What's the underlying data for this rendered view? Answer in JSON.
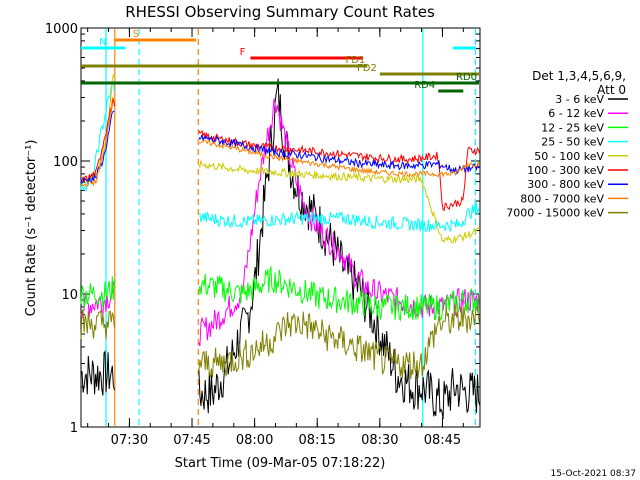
{
  "chart_data": {
    "type": "line",
    "title": "RHESSI Observing Summary Count Rates",
    "xlabel": "Start Time (09-Mar-05 07:18:22)",
    "ylabel": "Count Rate (s⁻¹ detector⁻¹)",
    "yscale": "log",
    "ylim": [
      1,
      1000
    ],
    "xlim_minutes_of_day": [
      438.4,
      534
    ],
    "x_ticks": [
      {
        "t": 450,
        "label": "07:30"
      },
      {
        "t": 465,
        "label": "07:45"
      },
      {
        "t": 480,
        "label": "08:00"
      },
      {
        "t": 495,
        "label": "08:15"
      },
      {
        "t": 510,
        "label": "08:30"
      },
      {
        "t": 525,
        "label": "08:45"
      }
    ],
    "y_ticks": [
      {
        "v": 1,
        "label": "1"
      },
      {
        "v": 10,
        "label": "10"
      },
      {
        "v": 100,
        "label": "100"
      },
      {
        "v": 1000,
        "label": "1000"
      }
    ],
    "legend": {
      "placement": "right",
      "header": [
        "Det 1,3,4,5,6,9,",
        "Att 0"
      ],
      "entries": [
        {
          "label": "3 - 6 keV",
          "color": "#000000"
        },
        {
          "label": "6 - 12 keV",
          "color": "#ff00ff"
        },
        {
          "label": "12 - 25 keV",
          "color": "#00ff00"
        },
        {
          "label": "25 - 50 keV",
          "color": "#00ffff"
        },
        {
          "label": "50 - 100 keV",
          "color": "#cccc00"
        },
        {
          "label": "100 - 300 keV",
          "color": "#ff0000"
        },
        {
          "label": "300 - 800 keV",
          "color": "#0000ff"
        },
        {
          "label": "800 - 7000 keV",
          "color": "#ff8000"
        },
        {
          "label": "7000 - 15000 keV",
          "color": "#808000"
        }
      ]
    },
    "flag_bars": [
      {
        "label": "S",
        "t0": 446.5,
        "t1": 466,
        "color": "#ff8000"
      },
      {
        "label": "N",
        "t0": 438.4,
        "t1": 449,
        "color": "#00ffff"
      },
      {
        "label": "N",
        "t0": 527.5,
        "t1": 533,
        "color": "#00ffff"
      },
      {
        "label": "F",
        "t0": 479,
        "t1": 506,
        "color": "#ff0000"
      },
      {
        "label": "FD1",
        "t0": 438.4,
        "t1": 507,
        "color": "#808000"
      },
      {
        "label": "FD2",
        "t0": 510,
        "t1": 534,
        "color": "#808000"
      },
      {
        "label": "RD0",
        "t0": 438.4,
        "t1": 534,
        "color": "#006400"
      },
      {
        "label": "RD4",
        "t0": 524,
        "t1": 530,
        "color": "#006400"
      }
    ],
    "vlines": [
      {
        "t": 444.4,
        "color": "#00ffff",
        "style": "solid"
      },
      {
        "t": 446.5,
        "color": "#ff8000",
        "style": "solid"
      },
      {
        "t": 452.3,
        "color": "#00ffff",
        "style": "dashed"
      },
      {
        "t": 466.5,
        "color": "#ff8000",
        "style": "dashed"
      },
      {
        "t": 520.3,
        "color": "#00ffff",
        "style": "solid"
      },
      {
        "t": 532.9,
        "color": "#00ffff",
        "style": "dashed"
      }
    ],
    "gap_minutes": [
      446.5,
      466.5
    ],
    "series": [
      {
        "name": "3 - 6 keV",
        "color": "#000000",
        "points": [
          [
            438.4,
            2.5
          ],
          [
            442,
            2.5
          ],
          [
            444,
            2.5
          ],
          [
            446,
            2.5
          ],
          [
            466.5,
            1.8
          ],
          [
            470,
            1.8
          ],
          [
            474,
            3
          ],
          [
            476,
            4.5
          ],
          [
            478,
            6
          ],
          [
            480,
            12
          ],
          [
            482,
            40
          ],
          [
            484,
            140
          ],
          [
            485.5,
            330
          ],
          [
            487,
            160
          ],
          [
            489,
            80
          ],
          [
            491,
            55
          ],
          [
            493,
            45
          ],
          [
            496,
            32
          ],
          [
            499,
            22
          ],
          [
            502,
            14
          ],
          [
            505,
            11
          ],
          [
            508,
            7
          ],
          [
            510,
            5
          ],
          [
            514,
            2.5
          ],
          [
            518,
            2
          ],
          [
            520,
            2
          ],
          [
            525,
            1.5
          ],
          [
            528,
            2
          ],
          [
            531,
            1.8
          ],
          [
            534,
            1.8
          ]
        ]
      },
      {
        "name": "6 - 12 keV",
        "color": "#ff00ff",
        "points": [
          [
            438.4,
            8
          ],
          [
            444,
            9
          ],
          [
            446,
            10
          ],
          [
            466.5,
            5
          ],
          [
            470,
            6
          ],
          [
            474,
            8
          ],
          [
            477,
            10
          ],
          [
            479,
            25
          ],
          [
            481,
            70
          ],
          [
            483,
            150
          ],
          [
            485,
            300
          ],
          [
            486,
            220
          ],
          [
            488,
            120
          ],
          [
            490,
            70
          ],
          [
            492,
            45
          ],
          [
            495,
            32
          ],
          [
            498,
            25
          ],
          [
            501,
            20
          ],
          [
            504,
            14
          ],
          [
            507,
            11
          ],
          [
            510,
            10
          ],
          [
            514,
            9
          ],
          [
            520,
            8
          ],
          [
            525,
            8
          ],
          [
            530,
            9
          ],
          [
            534,
            9
          ]
        ]
      },
      {
        "name": "12 - 25 keV",
        "color": "#00ff00",
        "points": [
          [
            438.4,
            10
          ],
          [
            444,
            10
          ],
          [
            446,
            11
          ],
          [
            466.5,
            12
          ],
          [
            472,
            11
          ],
          [
            477,
            10
          ],
          [
            480,
            11
          ],
          [
            484,
            13
          ],
          [
            487,
            12
          ],
          [
            490,
            11
          ],
          [
            495,
            9.5
          ],
          [
            500,
            9
          ],
          [
            505,
            8.5
          ],
          [
            510,
            8
          ],
          [
            515,
            8
          ],
          [
            520,
            8
          ],
          [
            525,
            8
          ],
          [
            530,
            9
          ],
          [
            534,
            9
          ]
        ]
      },
      {
        "name": "25 - 50 keV",
        "color": "#00ffff",
        "points": [
          [
            438.4,
            65
          ],
          [
            441,
            70
          ],
          [
            443,
            150
          ],
          [
            444.5,
            250
          ],
          [
            446,
            380
          ],
          [
            466.5,
            38
          ],
          [
            472,
            36
          ],
          [
            478,
            35
          ],
          [
            484,
            36
          ],
          [
            490,
            37
          ],
          [
            496,
            37
          ],
          [
            502,
            37
          ],
          [
            508,
            35
          ],
          [
            514,
            34
          ],
          [
            520,
            33
          ],
          [
            525,
            33
          ],
          [
            529,
            33
          ],
          [
            531,
            40
          ],
          [
            534,
            45
          ]
        ]
      },
      {
        "name": "50 - 100 keV",
        "color": "#cccc00",
        "points": [
          [
            438.4,
            70
          ],
          [
            442,
            80
          ],
          [
            444.5,
            150
          ],
          [
            446,
            420
          ],
          [
            466.5,
            95
          ],
          [
            472,
            90
          ],
          [
            478,
            85
          ],
          [
            484,
            83
          ],
          [
            490,
            80
          ],
          [
            496,
            78
          ],
          [
            502,
            76
          ],
          [
            508,
            74
          ],
          [
            514,
            73
          ],
          [
            520,
            73
          ],
          [
            525,
            25
          ],
          [
            530,
            27
          ],
          [
            534,
            30
          ]
        ]
      },
      {
        "name": "100 - 300 keV",
        "color": "#ff0000",
        "points": [
          [
            438.4,
            70
          ],
          [
            442,
            80
          ],
          [
            444,
            150
          ],
          [
            446,
            280
          ],
          [
            466.5,
            160
          ],
          [
            470,
            150
          ],
          [
            475,
            140
          ],
          [
            480,
            130
          ],
          [
            486,
            125
          ],
          [
            492,
            120
          ],
          [
            498,
            115
          ],
          [
            504,
            110
          ],
          [
            510,
            105
          ],
          [
            516,
            103
          ],
          [
            520,
            105
          ],
          [
            524,
            110
          ],
          [
            525,
            45
          ],
          [
            530,
            50
          ],
          [
            531,
            120
          ],
          [
            534,
            120
          ]
        ]
      },
      {
        "name": "300 - 800 keV",
        "color": "#0000ff",
        "points": [
          [
            438.4,
            70
          ],
          [
            442,
            75
          ],
          [
            444,
            110
          ],
          [
            446,
            230
          ],
          [
            466.5,
            150
          ],
          [
            470,
            145
          ],
          [
            475,
            135
          ],
          [
            480,
            125
          ],
          [
            486,
            115
          ],
          [
            492,
            110
          ],
          [
            498,
            103
          ],
          [
            504,
            97
          ],
          [
            510,
            93
          ],
          [
            516,
            92
          ],
          [
            520,
            93
          ],
          [
            524,
            95
          ],
          [
            528,
            85
          ],
          [
            534,
            90
          ]
        ]
      },
      {
        "name": "800 - 7000 keV",
        "color": "#ff8000",
        "points": [
          [
            438.4,
            65
          ],
          [
            442,
            70
          ],
          [
            444,
            120
          ],
          [
            446,
            300
          ],
          [
            466.5,
            140
          ],
          [
            470,
            135
          ],
          [
            475,
            125
          ],
          [
            480,
            115
          ],
          [
            486,
            105
          ],
          [
            492,
            98
          ],
          [
            498,
            92
          ],
          [
            504,
            86
          ],
          [
            510,
            82
          ],
          [
            516,
            80
          ],
          [
            520,
            80
          ],
          [
            524,
            80
          ],
          [
            528,
            80
          ],
          [
            531,
            95
          ],
          [
            534,
            95
          ]
        ]
      },
      {
        "name": "7000 - 15000 keV",
        "color": "#808000",
        "points": [
          [
            438.4,
            6
          ],
          [
            442,
            6
          ],
          [
            446,
            6
          ],
          [
            466.5,
            3
          ],
          [
            472,
            3
          ],
          [
            478,
            3.5
          ],
          [
            484,
            4.5
          ],
          [
            488,
            6
          ],
          [
            492,
            6
          ],
          [
            496,
            5
          ],
          [
            500,
            4.5
          ],
          [
            504,
            4
          ],
          [
            508,
            3.5
          ],
          [
            512,
            3
          ],
          [
            516,
            3
          ],
          [
            520,
            3
          ],
          [
            524,
            6
          ],
          [
            530,
            6.5
          ],
          [
            534,
            7
          ]
        ]
      }
    ]
  },
  "footer": {
    "timestamp": "15-Oct-2021 08:37"
  }
}
